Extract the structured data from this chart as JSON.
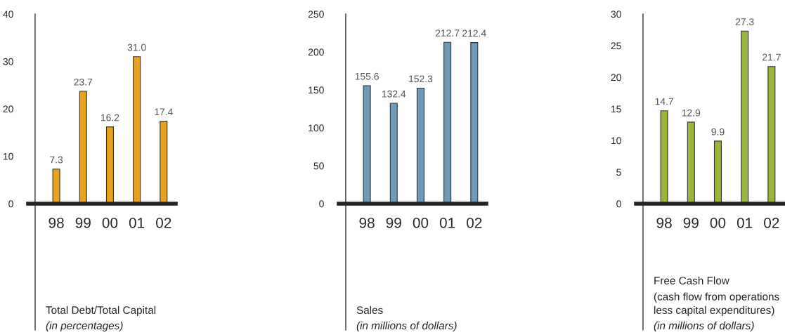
{
  "chart_data": [
    {
      "type": "bar",
      "title": "Total Debt/Total Capital",
      "subtitle": "(in percentages)",
      "categories": [
        "98",
        "99",
        "00",
        "01",
        "02"
      ],
      "values": [
        7.3,
        23.7,
        16.2,
        31.0,
        17.4
      ],
      "value_labels": [
        "7.3",
        "23.7",
        "16.2",
        "31.0",
        "17.4"
      ],
      "color": "#e8a11e",
      "ylim": [
        0,
        40
      ],
      "yticks": [
        0,
        10,
        20,
        30,
        40
      ],
      "grid": false
    },
    {
      "type": "bar",
      "title": "Sales",
      "subtitle": "(in millions of dollars)",
      "categories": [
        "98",
        "99",
        "00",
        "01",
        "02"
      ],
      "values": [
        155.6,
        132.4,
        152.3,
        212.7,
        212.4
      ],
      "value_labels": [
        "155.6",
        "132.4",
        "152.3",
        "212.7",
        "212.4"
      ],
      "color": "#6f9bb9",
      "ylim": [
        0,
        250
      ],
      "yticks": [
        0,
        50,
        100,
        150,
        200,
        250
      ],
      "grid": false
    },
    {
      "type": "bar",
      "title": "Free Cash Flow",
      "annotations": [
        "(cash flow from operations\nless capital expenditures)"
      ],
      "subtitle": "(in millions of dollars)",
      "categories": [
        "98",
        "99",
        "00",
        "01",
        "02"
      ],
      "values": [
        14.7,
        12.9,
        9.9,
        27.3,
        21.7
      ],
      "value_labels": [
        "14.7",
        "12.9",
        "9.9",
        "27.3",
        "21.7"
      ],
      "color": "#9bb53a",
      "ylim": [
        0,
        30
      ],
      "yticks": [
        0,
        5,
        10,
        15,
        20,
        25,
        30
      ],
      "grid": false
    }
  ]
}
